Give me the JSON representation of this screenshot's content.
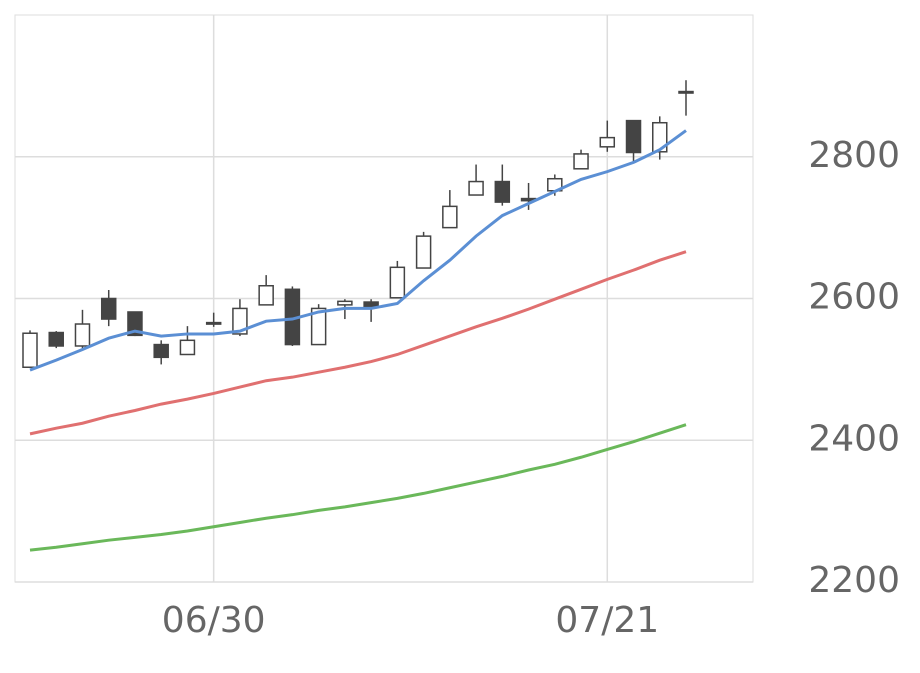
{
  "chart_data": {
    "type": "candlestick",
    "categories": [
      null,
      null,
      null,
      null,
      null,
      null,
      null,
      "06/30",
      null,
      null,
      null,
      null,
      null,
      null,
      null,
      null,
      null,
      null,
      null,
      null,
      null,
      null,
      "07/21",
      null,
      null,
      null
    ],
    "open": [
      2503,
      2552,
      2533,
      2600,
      2581,
      2535,
      2521,
      2564,
      2550,
      2591,
      2613,
      2535,
      2591,
      2595,
      2601,
      2643,
      2700,
      2746,
      2765,
      2741,
      2752,
      2783,
      2814,
      2851,
      2807,
      2890
    ],
    "high": [
      2555,
      2554,
      2584,
      2612,
      2581,
      2541,
      2561,
      2580,
      2599,
      2633,
      2617,
      2592,
      2599,
      2599,
      2653,
      2694,
      2753,
      2789,
      2789,
      2763,
      2775,
      2810,
      2851,
      2851,
      2857,
      2908
    ],
    "low": [
      2502,
      2530,
      2528,
      2561,
      2547,
      2507,
      2521,
      2560,
      2547,
      2591,
      2533,
      2535,
      2571,
      2567,
      2601,
      2643,
      2700,
      2746,
      2731,
      2725,
      2745,
      2782,
      2807,
      2792,
      2796,
      2858
    ],
    "close": [
      2551,
      2533,
      2564,
      2571,
      2548,
      2517,
      2541,
      2566,
      2586,
      2618,
      2535,
      2586,
      2596,
      2589,
      2644,
      2688,
      2730,
      2765,
      2736,
      2738,
      2769,
      2804,
      2827,
      2806,
      2848,
      2892
    ],
    "up_color": "#ffffff",
    "down_color": "#444444",
    "moving_averages": [
      {
        "color": "#5b8fd4",
        "values": [
          2499,
          2513,
          2528,
          2544,
          2554,
          2547,
          2550,
          2550,
          2554,
          2568,
          2571,
          2581,
          2586,
          2586,
          2593,
          2625,
          2654,
          2688,
          2717,
          2734,
          2751,
          2768,
          2779,
          2792,
          2810,
          2837
        ]
      },
      {
        "color": "#e07070",
        "values": [
          2409,
          2417,
          2424,
          2434,
          2442,
          2451,
          2458,
          2466,
          2475,
          2484,
          2489,
          2496,
          2503,
          2511,
          2521,
          2534,
          2547,
          2560,
          2572,
          2585,
          2599,
          2613,
          2627,
          2640,
          2654,
          2666
        ]
      },
      {
        "color": "#6ab85a",
        "values": [
          2245,
          2249,
          2254,
          2259,
          2263,
          2267,
          2272,
          2278,
          2284,
          2290,
          2295,
          2301,
          2306,
          2312,
          2318,
          2325,
          2333,
          2341,
          2349,
          2358,
          2366,
          2376,
          2387,
          2398,
          2410,
          2422
        ]
      }
    ],
    "ylim": [
      2200,
      3000
    ],
    "yticks": [
      2200,
      2400,
      2600,
      2800
    ],
    "grid": true
  }
}
